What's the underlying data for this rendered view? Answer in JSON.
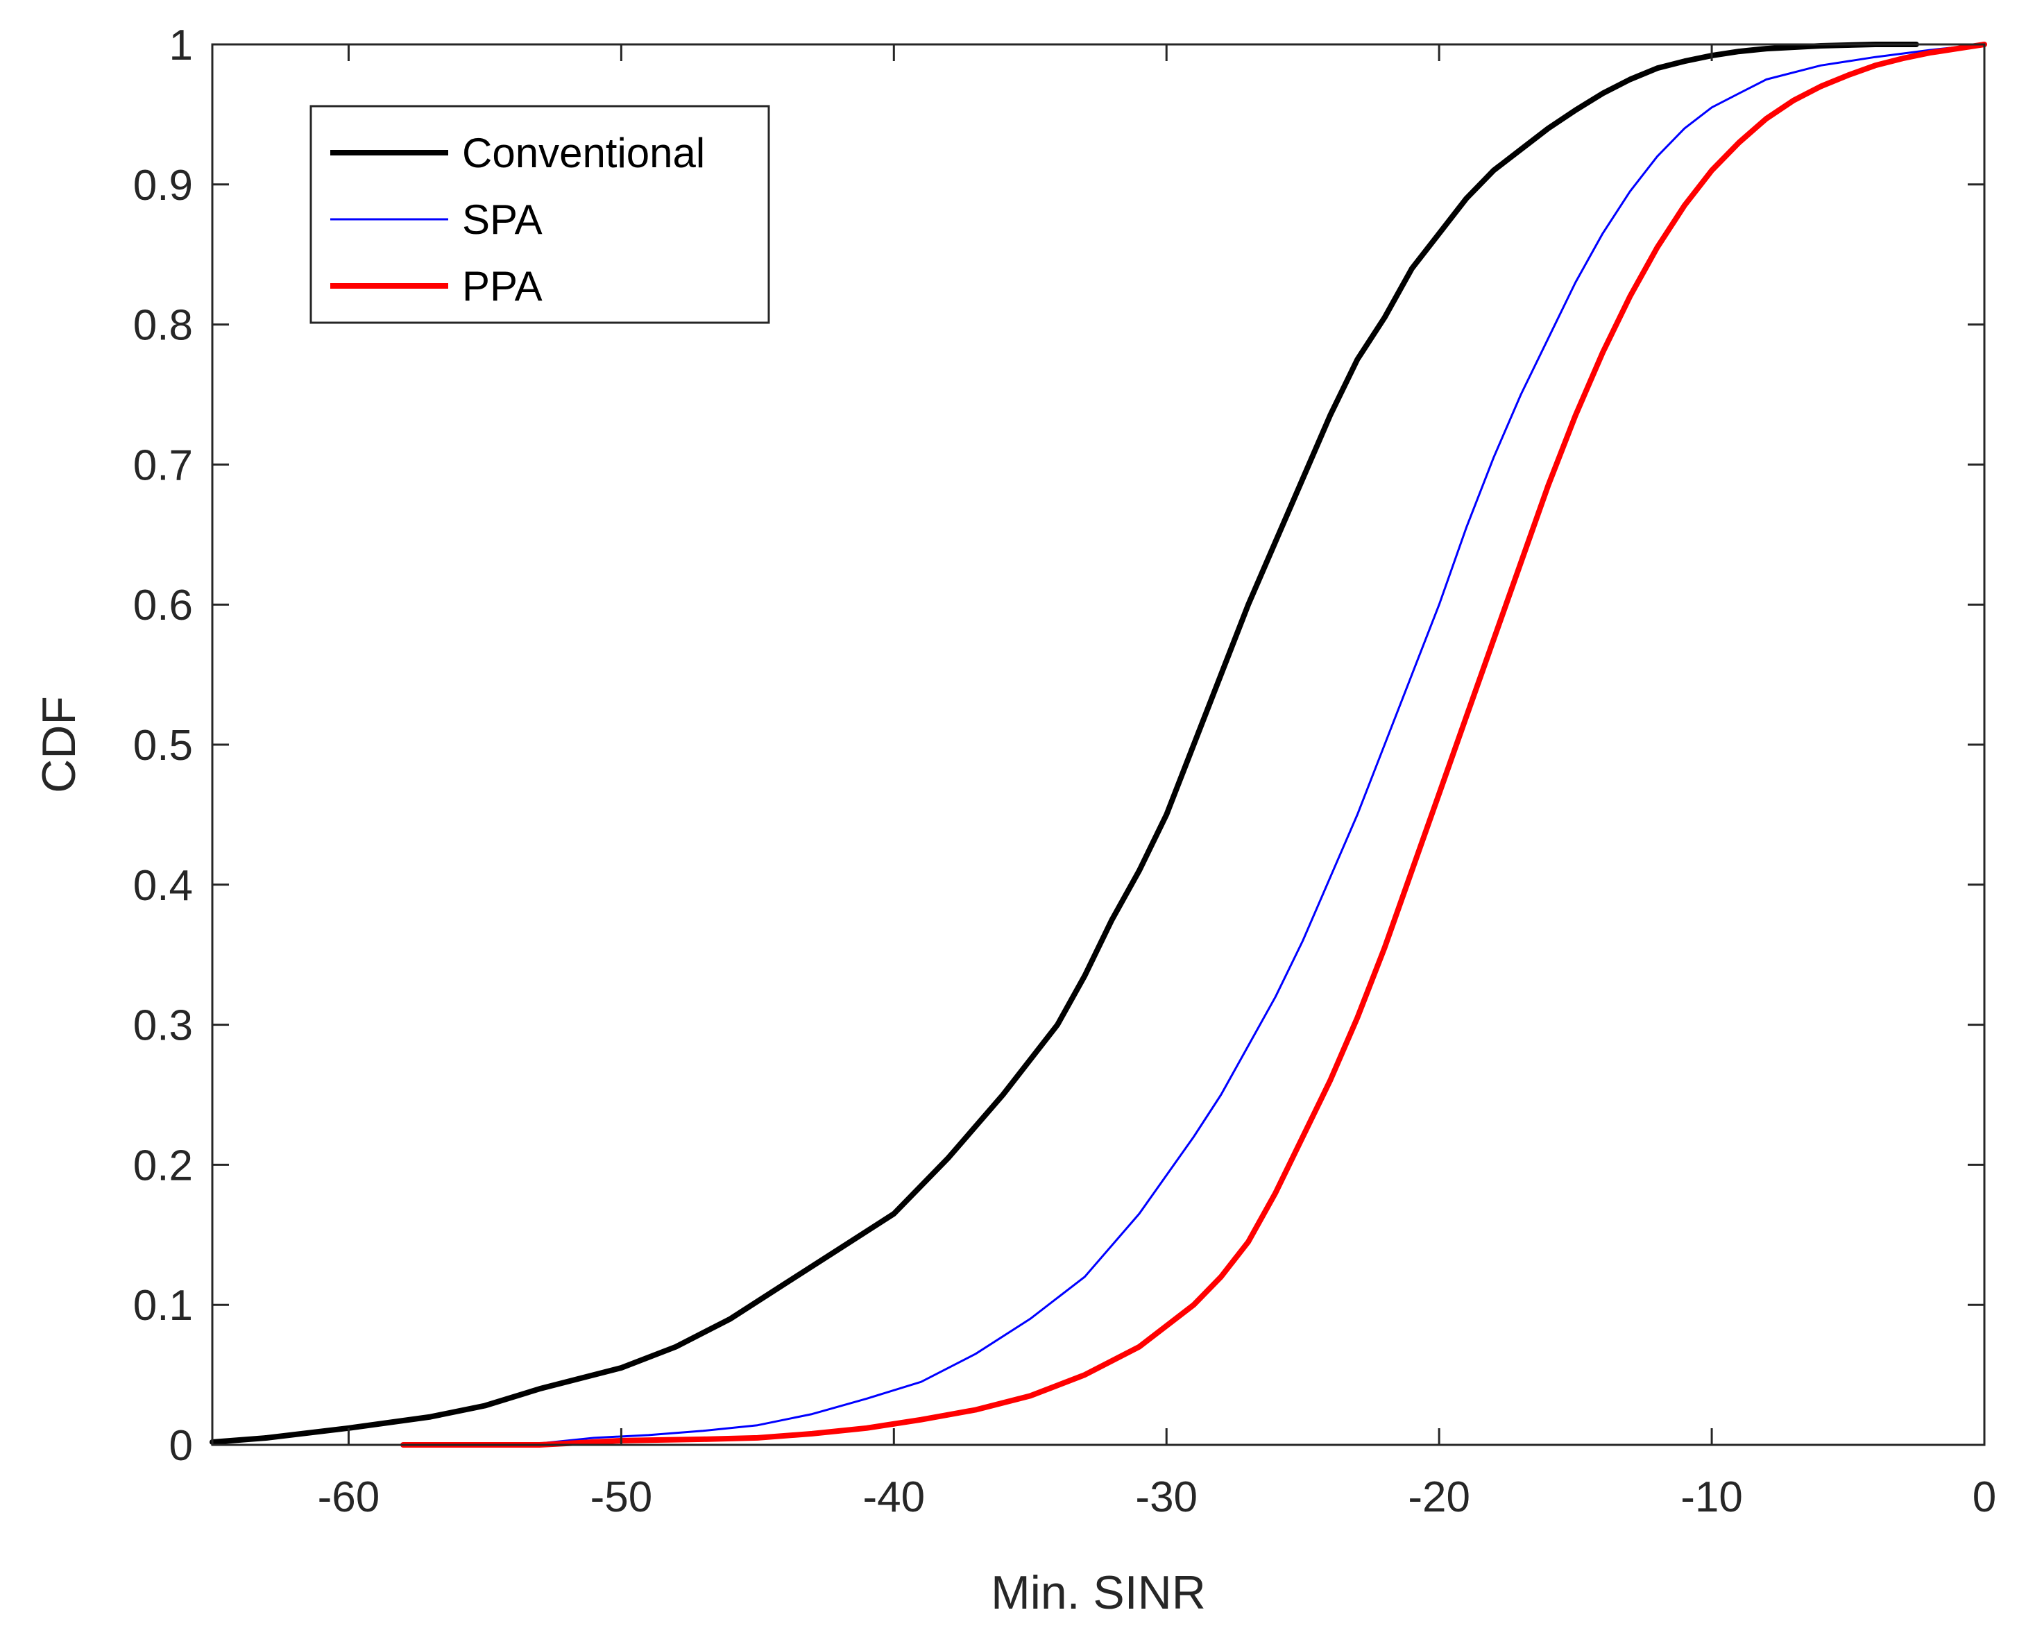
{
  "chart_data": {
    "type": "line",
    "title": "",
    "xlabel": "Min. SINR",
    "ylabel": "CDF",
    "xlim": [
      -65,
      0
    ],
    "ylim": [
      0,
      1
    ],
    "xticks": [
      -60,
      -50,
      -40,
      -30,
      -20,
      -10,
      0
    ],
    "yticks": [
      0,
      0.1,
      0.2,
      0.3,
      0.4,
      0.5,
      0.6,
      0.7,
      0.8,
      0.9,
      1
    ],
    "xtick_labels": [
      "-60",
      "-50",
      "-40",
      "-30",
      "-20",
      "-10",
      "0"
    ],
    "ytick_labels": [
      "0",
      "0.1",
      "0.2",
      "0.3",
      "0.4",
      "0.5",
      "0.6",
      "0.7",
      "0.8",
      "0.9",
      "1"
    ],
    "grid": false,
    "legend_position": "top-left",
    "series": [
      {
        "name": "Conventional",
        "color": "#000000",
        "x": [
          -65,
          -63,
          -60,
          -57,
          -55,
          -53,
          -50,
          -48,
          -46,
          -44,
          -42,
          -40,
          -38,
          -36,
          -34,
          -33,
          -32,
          -31,
          -30,
          -29,
          -28,
          -27,
          -26,
          -25,
          -24,
          -23,
          -22,
          -21,
          -20,
          -19,
          -18,
          -17,
          -16,
          -15,
          -14,
          -13,
          -12,
          -11,
          -10,
          -9,
          -8,
          -6,
          -4,
          -2.5
        ],
        "y": [
          0.002,
          0.005,
          0.012,
          0.02,
          0.028,
          0.04,
          0.055,
          0.07,
          0.09,
          0.115,
          0.14,
          0.165,
          0.205,
          0.25,
          0.3,
          0.335,
          0.375,
          0.41,
          0.45,
          0.5,
          0.55,
          0.6,
          0.645,
          0.69,
          0.735,
          0.775,
          0.805,
          0.84,
          0.865,
          0.89,
          0.91,
          0.925,
          0.94,
          0.953,
          0.965,
          0.975,
          0.983,
          0.988,
          0.992,
          0.995,
          0.997,
          0.999,
          1.0,
          1.0
        ]
      },
      {
        "name": "SPA",
        "color": "#0000FF",
        "x": [
          -61,
          -56,
          -53,
          -51,
          -49,
          -47,
          -45,
          -43,
          -41,
          -39,
          -37,
          -35,
          -33,
          -31,
          -29,
          -28,
          -27,
          -26,
          -25,
          -24,
          -23,
          -22,
          -21,
          -20,
          -19,
          -18,
          -17,
          -16,
          -15,
          -14,
          -13,
          -12,
          -11,
          -10,
          -9,
          -8,
          -6,
          -4,
          -2,
          -1,
          0
        ],
        "y": [
          0,
          0,
          0.001,
          0.005,
          0.007,
          0.01,
          0.014,
          0.022,
          0.033,
          0.045,
          0.065,
          0.09,
          0.12,
          0.165,
          0.22,
          0.25,
          0.285,
          0.32,
          0.36,
          0.405,
          0.45,
          0.5,
          0.55,
          0.6,
          0.655,
          0.705,
          0.75,
          0.79,
          0.83,
          0.865,
          0.895,
          0.92,
          0.94,
          0.955,
          0.965,
          0.975,
          0.985,
          0.991,
          0.996,
          0.998,
          1.0
        ]
      },
      {
        "name": "PPA",
        "color": "#FF0000",
        "x": [
          -58,
          -53,
          -50,
          -47,
          -45,
          -43,
          -41,
          -39,
          -37,
          -35,
          -33,
          -31,
          -29,
          -28,
          -27,
          -26,
          -25,
          -24,
          -23,
          -22,
          -21,
          -20,
          -19,
          -18,
          -17,
          -16,
          -15,
          -14,
          -13,
          -12,
          -11,
          -10,
          -9,
          -8,
          -7,
          -6,
          -5,
          -4,
          -3,
          -2,
          -1,
          0
        ],
        "y": [
          0,
          0,
          0.003,
          0.004,
          0.005,
          0.008,
          0.012,
          0.018,
          0.025,
          0.035,
          0.05,
          0.07,
          0.1,
          0.12,
          0.145,
          0.18,
          0.22,
          0.26,
          0.305,
          0.355,
          0.41,
          0.465,
          0.52,
          0.575,
          0.63,
          0.685,
          0.735,
          0.78,
          0.82,
          0.855,
          0.885,
          0.91,
          0.93,
          0.947,
          0.96,
          0.97,
          0.978,
          0.985,
          0.99,
          0.994,
          0.997,
          1.0
        ]
      }
    ]
  }
}
